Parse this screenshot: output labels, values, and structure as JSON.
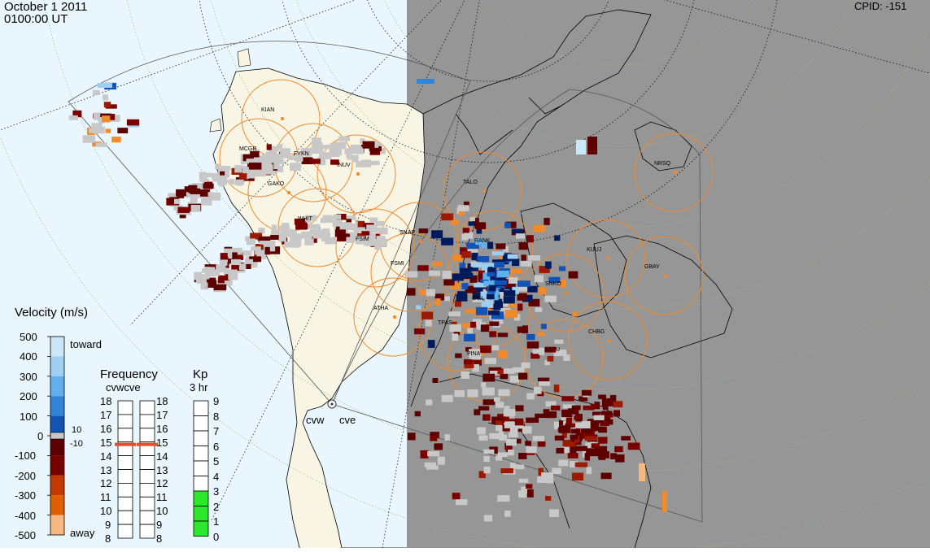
{
  "header": {
    "date": "October  1 2011",
    "time": "0100:00 UT",
    "cpid": "CPID:  -151"
  },
  "legend": {
    "velocity_title": "Velocity (m/s)",
    "velocity_ticks": [
      "500",
      "400",
      "300",
      "200",
      "100",
      "0",
      "-100",
      "-200",
      "-300",
      "-400",
      "-500"
    ],
    "toward_label": "toward",
    "away_label": "away",
    "threshold_pos": "10",
    "threshold_neg": "-10",
    "colors": {
      "toward": [
        "#cbe6f7",
        "#9ccff2",
        "#5fb0ec",
        "#2f86d8",
        "#1253b5",
        "#0b2f8a",
        "#001a5c"
      ],
      "away": [
        "#5c0000",
        "#7a0000",
        "#9c1a00",
        "#c23a00",
        "#e06000",
        "#f28a2a",
        "#f7b780",
        "#f9dcc2"
      ],
      "zero_band": "#c8c8c8"
    }
  },
  "frequency": {
    "title": "Frequency",
    "subtitle": "cvwcve",
    "ticks": [
      "18",
      "17",
      "16",
      "15",
      "14",
      "13",
      "12",
      "11",
      "10",
      "9",
      "8"
    ],
    "marker_value": 15
  },
  "kp": {
    "title": "Kp",
    "subtitle": "3 hr",
    "ticks": [
      "9",
      "8",
      "7",
      "6",
      "5",
      "4",
      "3",
      "2",
      "1",
      "0"
    ],
    "value": 3,
    "fill_color": "#2ee82e"
  },
  "radars": {
    "west_label": "cvw",
    "east_label": "cve"
  },
  "stations": [
    "KIAN",
    "MCGR",
    "FYKN",
    "GAKO",
    "INUV",
    "WHIT",
    "FSIM",
    "SNAP",
    "FSMI",
    "RANK",
    "TALO",
    "KUUJ",
    "GBAY",
    "SNKO",
    "GILL",
    "ATHA",
    "TPAS",
    "CHBG",
    "KAPU",
    "PINA",
    "NRSQ"
  ]
}
